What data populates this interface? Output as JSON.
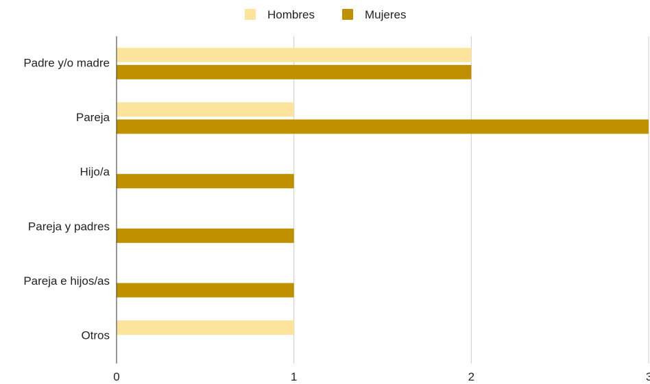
{
  "chart_data": {
    "type": "bar",
    "orientation": "horizontal",
    "categories": [
      "Padre y/o madre",
      "Pareja",
      "Hijo/a",
      "Pareja y padres",
      "Pareja e hijos/as",
      "Otros"
    ],
    "series": [
      {
        "name": "Hombres",
        "color": "#fde49d",
        "values": [
          2,
          1,
          0,
          0,
          0,
          1
        ]
      },
      {
        "name": "Mujeres",
        "color": "#bf9000",
        "values": [
          2,
          3,
          1,
          1,
          1,
          0
        ]
      }
    ],
    "xlim": [
      0,
      3
    ],
    "x_ticks": [
      0,
      1,
      2,
      3
    ],
    "grid": true,
    "legend_position": "top-center",
    "title": "",
    "xlabel": "",
    "ylabel": ""
  }
}
